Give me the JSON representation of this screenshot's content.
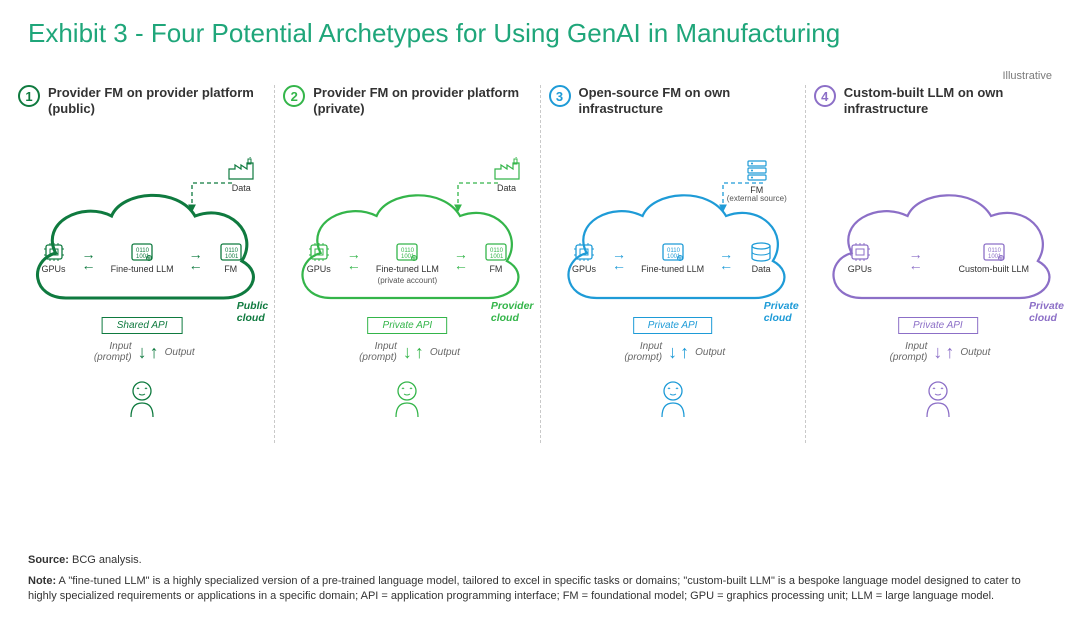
{
  "title": "Exhibit 3 - Four Potential Archetypes for Using GenAI in Manufacturing",
  "illustrative": "Illustrative",
  "title_color": "#1fa67a",
  "colors": {
    "col1": {
      "stroke": "#0f7a3f",
      "text": "#0f7a3f",
      "light": "#0f7a3f"
    },
    "col2": {
      "stroke": "#34b54a",
      "text": "#34b54a",
      "light": "#34b54a"
    },
    "col3": {
      "stroke": "#1e9bd7",
      "text": "#1e9bd7",
      "light": "#1e9bd7"
    },
    "col4": {
      "stroke": "#8c6fc7",
      "text": "#8c6fc7",
      "light": "#8c6fc7"
    }
  },
  "cols": [
    {
      "num": "1",
      "title": "Provider FM on provider platform (public)",
      "data_label": "Data",
      "has_factory": true,
      "slots": [
        {
          "icon": "chip",
          "label": "GPUs"
        },
        {
          "icon": "llm",
          "label": "Fine-tuned LLM"
        },
        {
          "icon": "fm",
          "label": "FM"
        }
      ],
      "cloud_label": "Public cloud",
      "api": "Shared API",
      "input": "Input (prompt)",
      "output": "Output"
    },
    {
      "num": "2",
      "title": "Provider FM on provider platform (private)",
      "data_label": "Data",
      "has_factory": true,
      "slots": [
        {
          "icon": "chip",
          "label": "GPUs"
        },
        {
          "icon": "llm",
          "label": "Fine-tuned LLM",
          "sub": "(private account)"
        },
        {
          "icon": "fm",
          "label": "FM"
        }
      ],
      "cloud_label": "Provider cloud",
      "api": "Private API",
      "input": "Input (prompt)",
      "output": "Output"
    },
    {
      "num": "3",
      "title": "Open-source FM on own infrastructure",
      "data_label": "FM",
      "data_sub": "(external source)",
      "has_factory": true,
      "factory_icon": "stack",
      "slots": [
        {
          "icon": "chip",
          "label": "GPUs"
        },
        {
          "icon": "llm",
          "label": "Fine-tuned LLM"
        },
        {
          "icon": "db",
          "label": "Data"
        }
      ],
      "cloud_label": "Private cloud",
      "api": "Private API",
      "input": "Input (prompt)",
      "output": "Output"
    },
    {
      "num": "4",
      "title": "Custom-built LLM on own infrastructure",
      "has_factory": false,
      "slots": [
        {
          "icon": "chip",
          "label": "GPUs"
        },
        {
          "icon": "llm",
          "label": "Custom-built LLM"
        }
      ],
      "cloud_label": "Private cloud",
      "api": "Private API",
      "input": "Input (prompt)",
      "output": "Output"
    }
  ],
  "source_label": "Source:",
  "source_text": " BCG analysis.",
  "note_label": "Note:",
  "note_text": " A \"fine-tuned LLM\" is a highly specialized version of a pre-trained language model, tailored to excel in specific tasks or domains;  \"custom-built LLM\" is a bespoke language model designed to cater to highly specialized requirements or applications in a specific domain; API = application programming interface; FM = foundational model; GPU = graphics processing unit;  LLM = large language model."
}
